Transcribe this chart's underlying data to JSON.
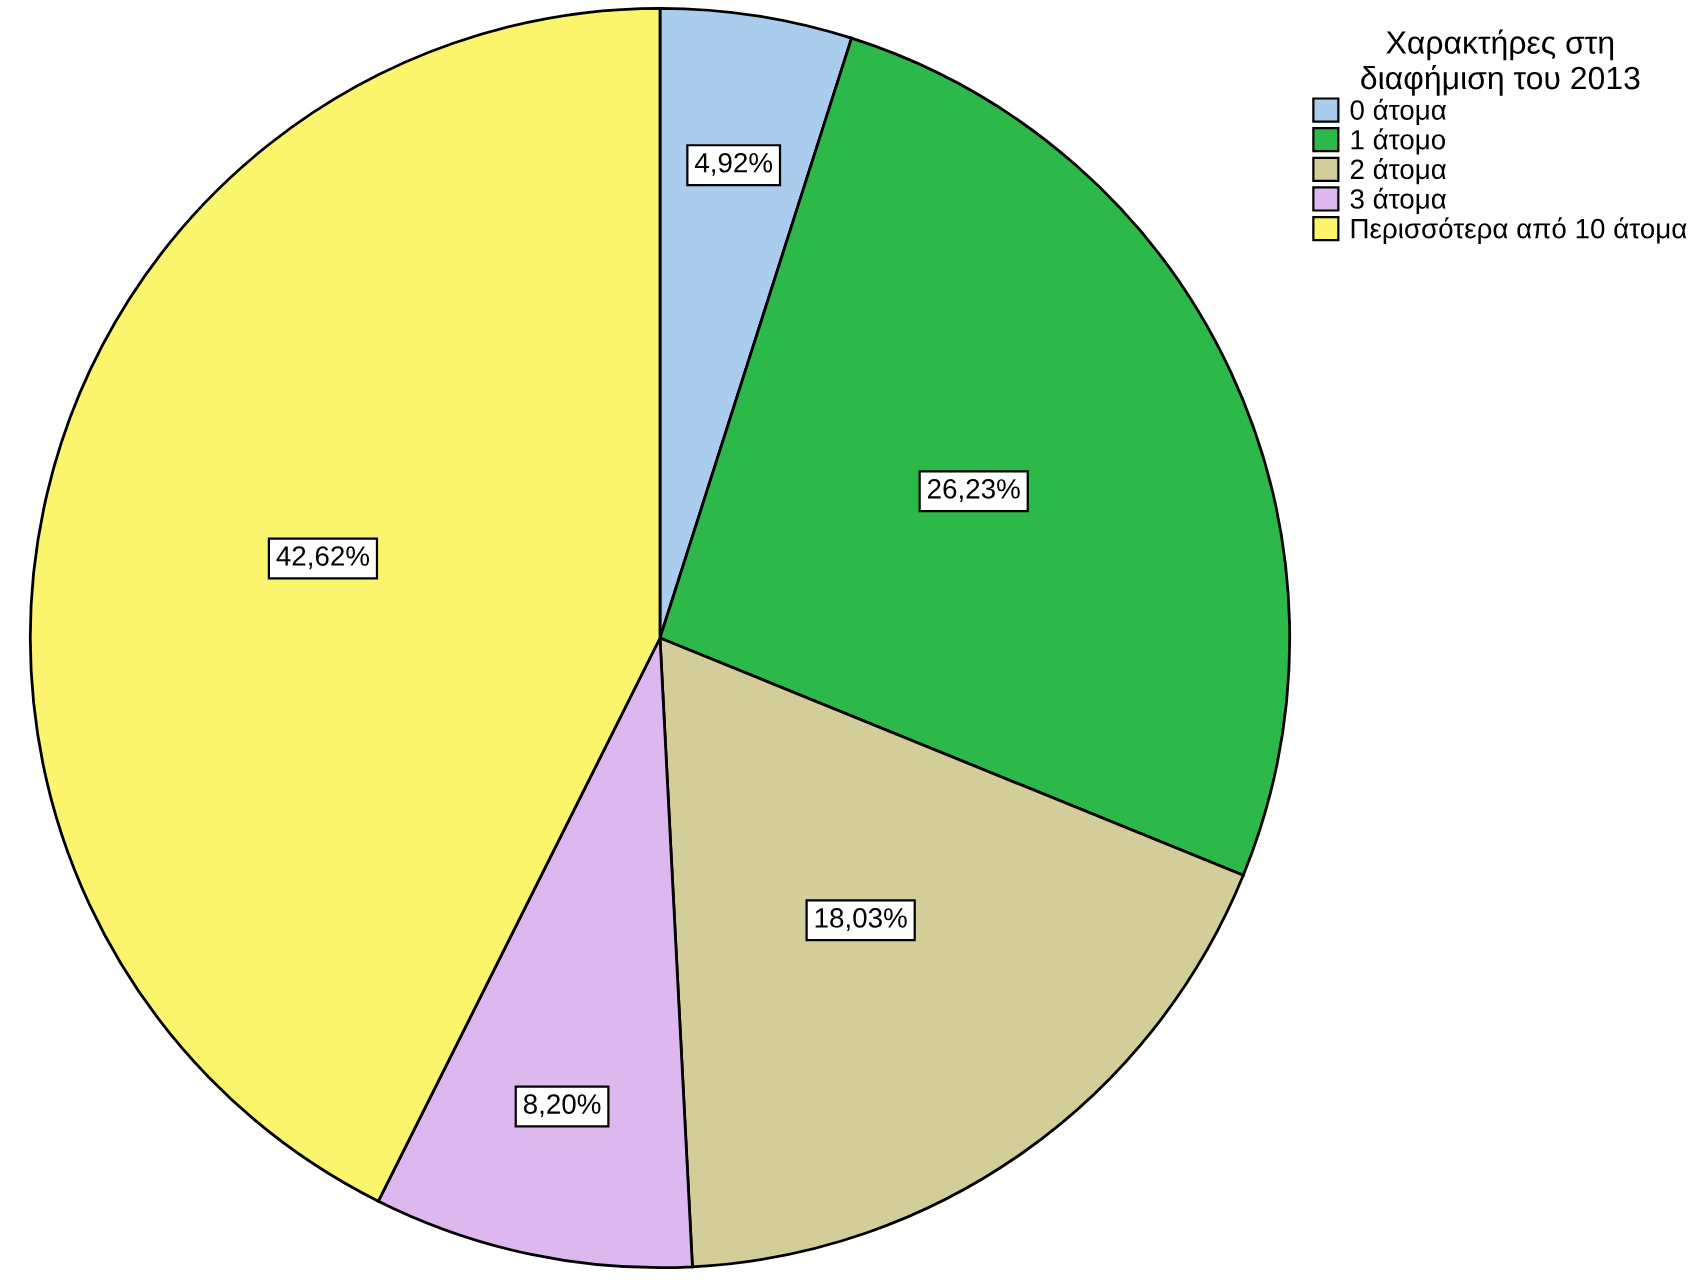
{
  "chart_data": {
    "type": "pie",
    "legend_title": "Χαρακτήρες στη\nδιαφήμιση του 2013",
    "categories": [
      "0 άτομα",
      "1 άτομο",
      "2 άτομα",
      "3 άτομα",
      "Περισσότερα από 10 άτομα"
    ],
    "values": [
      4.92,
      26.23,
      18.03,
      8.2,
      42.62
    ],
    "colors": [
      "#aacdee",
      "#2db84a",
      "#d3ce99",
      "#dcb8ef",
      "#fbf56d"
    ],
    "value_labels": [
      "4,92%",
      "26,23%",
      "18,03%",
      "8,20%",
      "42,62%"
    ],
    "legend": "top right"
  }
}
